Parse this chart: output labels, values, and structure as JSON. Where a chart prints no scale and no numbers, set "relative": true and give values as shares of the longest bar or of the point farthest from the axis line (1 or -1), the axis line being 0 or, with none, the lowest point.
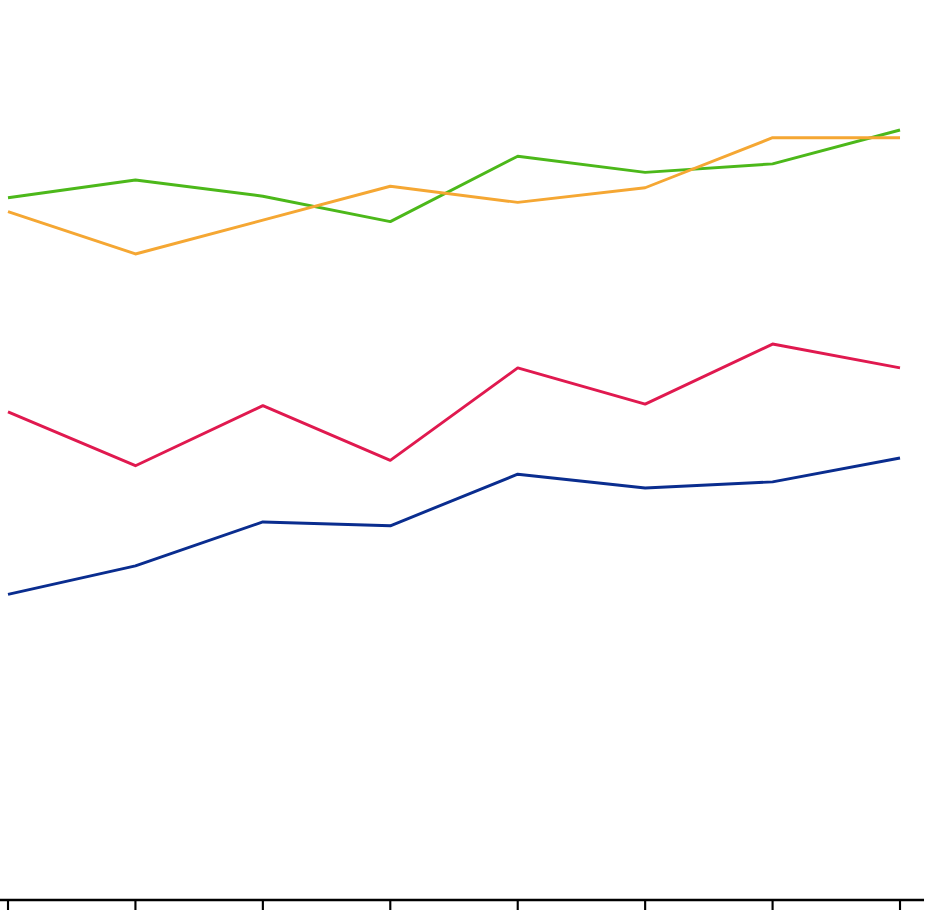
{
  "chart_data": {
    "type": "line",
    "relative": true,
    "categories": [
      null,
      null,
      null,
      null,
      null,
      null,
      null,
      null
    ],
    "marker": "none",
    "line_style": "solid",
    "grid": false,
    "series": [
      {
        "color": "#4cb81a",
        "values": [
          0.912,
          0.935,
          0.914,
          0.881,
          0.966,
          0.945,
          0.956,
          1
        ]
      },
      {
        "color": "#f5a733",
        "values": [
          0.894,
          0.839,
          0.883,
          0.927,
          0.906,
          0.925,
          0.99,
          0.99
        ]
      },
      {
        "color": "#e0194f",
        "values": [
          0.634,
          0.564,
          0.642,
          0.571,
          0.691,
          0.644,
          0.722,
          0.691
        ]
      },
      {
        "color": "#0a2d8f",
        "values": [
          0.397,
          0.434,
          0.491,
          0.486,
          0.553,
          0.535,
          0.543,
          0.574
        ]
      }
    ]
  }
}
